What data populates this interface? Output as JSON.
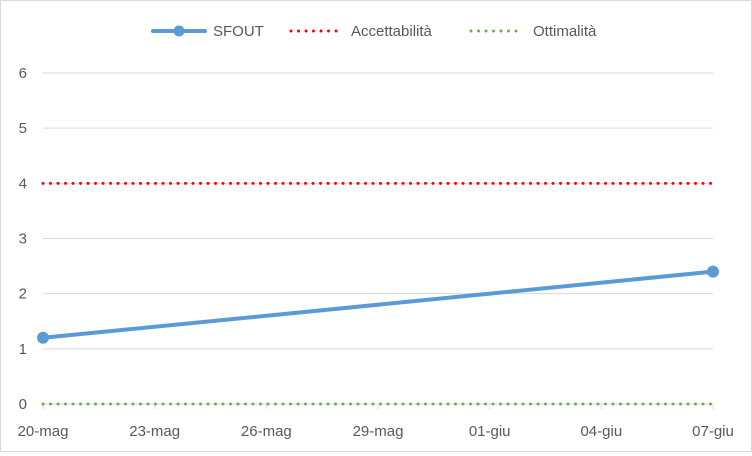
{
  "chart_data": {
    "type": "line",
    "title": "",
    "xlabel": "",
    "ylabel": "",
    "x_tick_labels": [
      "20-mag",
      "23-mag",
      "26-mag",
      "29-mag",
      "01-giu",
      "04-giu",
      "07-giu"
    ],
    "x_tick_positions": [
      0,
      3,
      6,
      9,
      12,
      15,
      18
    ],
    "xlim": [
      0,
      18
    ],
    "ylim": [
      0,
      6
    ],
    "y_ticks": [
      0,
      1,
      2,
      3,
      4,
      5,
      6
    ],
    "grid": true,
    "legend_position": "top",
    "series": [
      {
        "name": "SFOUT",
        "style": "solid-markers",
        "color": "#5b9bd5",
        "x": [
          0,
          18
        ],
        "y": [
          1.2,
          2.4
        ]
      },
      {
        "name": "Accettabilità",
        "style": "dotted",
        "color": "#ff0000",
        "x": [
          0,
          18
        ],
        "y": [
          4,
          4
        ]
      },
      {
        "name": "Ottimalità",
        "style": "dotted",
        "color": "#70ad47",
        "x": [
          0,
          18
        ],
        "y": [
          0,
          0
        ]
      }
    ]
  }
}
